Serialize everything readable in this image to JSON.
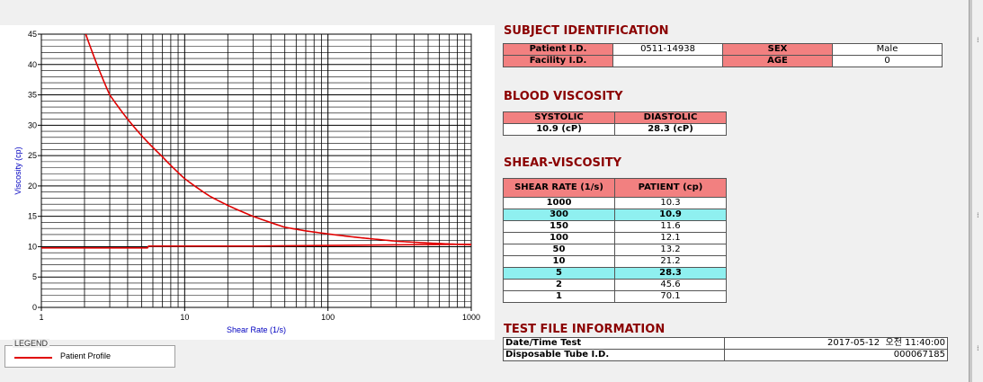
{
  "chart_data": {
    "type": "line",
    "ylabel": "Viscosity (cp)",
    "xlabel": "Shear Rate (1/s)",
    "x_scale": "log",
    "xlim": [
      1,
      1000
    ],
    "ylim": [
      0,
      45
    ],
    "x_ticks": [
      1,
      10,
      100,
      1000
    ],
    "y_ticks": [
      0,
      5,
      10,
      15,
      20,
      25,
      30,
      35,
      40,
      45
    ],
    "grid": true,
    "series": [
      {
        "name": "Patient Profile",
        "color": "#e00000",
        "points": [
          [
            2,
            45.6
          ],
          [
            3,
            35.0
          ],
          [
            4,
            31.0
          ],
          [
            5,
            28.3
          ],
          [
            7,
            24.8
          ],
          [
            10,
            21.2
          ],
          [
            15,
            18.3
          ],
          [
            20,
            16.8
          ],
          [
            30,
            15.0
          ],
          [
            50,
            13.2
          ],
          [
            70,
            12.6
          ],
          [
            100,
            12.1
          ],
          [
            150,
            11.6
          ],
          [
            200,
            11.3
          ],
          [
            300,
            10.9
          ],
          [
            500,
            10.6
          ],
          [
            700,
            10.45
          ],
          [
            1000,
            10.3
          ]
        ]
      },
      {
        "name": "Patient Profile",
        "color": "#e00000",
        "points": [
          [
            1,
            9.8
          ],
          [
            5.5,
            9.8
          ],
          [
            5.6,
            10.1
          ],
          [
            30,
            10.1
          ],
          [
            100,
            10.2
          ],
          [
            300,
            10.3
          ],
          [
            1000,
            10.4
          ]
        ]
      }
    ],
    "legend": {
      "title": "LEGEND",
      "position": "bottom-left",
      "entries": [
        "Patient Profile"
      ]
    }
  },
  "subject": {
    "title": "SUBJECT IDENTIFICATION",
    "patient_id_label": "Patient I.D.",
    "patient_id": "0511-14938",
    "sex_label": "SEX",
    "sex": "Male",
    "facility_label": "Facility I.D.",
    "facility": "",
    "age_label": "AGE",
    "age": "0"
  },
  "blood": {
    "title": "BLOOD VISCOSITY",
    "systolic_label": "SYSTOLIC",
    "diastolic_label": "DIASTOLIC",
    "systolic": "10.9 (cP)",
    "diastolic": "28.3 (cP)"
  },
  "shear": {
    "title": "SHEAR-VISCOSITY",
    "rate_header": "SHEAR RATE (1/s)",
    "patient_header": "PATIENT (cp)",
    "rows": [
      {
        "rate": "1000",
        "value": "10.3",
        "highlight": false
      },
      {
        "rate": "300",
        "value": "10.9",
        "highlight": true
      },
      {
        "rate": "150",
        "value": "11.6",
        "highlight": false
      },
      {
        "rate": "100",
        "value": "12.1",
        "highlight": false
      },
      {
        "rate": "50",
        "value": "13.2",
        "highlight": false
      },
      {
        "rate": "10",
        "value": "21.2",
        "highlight": false
      },
      {
        "rate": "5",
        "value": "28.3",
        "highlight": true
      },
      {
        "rate": "2",
        "value": "45.6",
        "highlight": false
      },
      {
        "rate": "1",
        "value": "70.1",
        "highlight": false
      }
    ]
  },
  "testfile": {
    "title": "TEST FILE INFORMATION",
    "datetime_label": "Date/Time Test",
    "datetime": "2017-05-12  오전 11:40:00",
    "tube_label": "Disposable Tube I.D.",
    "tube": "000067185"
  },
  "colors": {
    "header_fill": "#f28080",
    "highlight_fill": "#8ff0f0",
    "title_color": "#8b0000",
    "series_color": "#e00000",
    "axis_label_color": "#0000c0"
  }
}
